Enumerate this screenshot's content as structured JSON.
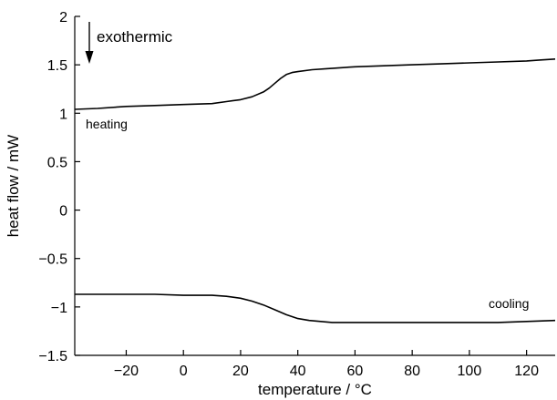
{
  "chart_data": {
    "type": "line",
    "xlabel": "temperature / °C",
    "ylabel": "heat flow / mW",
    "xlim": [
      -38,
      130
    ],
    "ylim": [
      -1.5,
      2
    ],
    "xticks": [
      -20,
      0,
      20,
      40,
      60,
      80,
      100,
      120
    ],
    "xtick_labels": [
      "−20",
      "0",
      "20",
      "40",
      "60",
      "80",
      "100",
      "120"
    ],
    "yticks": [
      -1.5,
      -1,
      -0.5,
      0,
      0.5,
      1,
      1.5,
      2
    ],
    "ytick_labels": [
      "−1.5",
      "−1",
      "−0.5",
      "0",
      "0.5",
      "1",
      "1.5",
      "2"
    ],
    "grid": false,
    "annotations": {
      "arrow_label": "exothermic",
      "heating_label": "heating",
      "cooling_label": "cooling"
    },
    "series": [
      {
        "x": [
          -38,
          -30,
          -20,
          -10,
          0,
          10,
          15,
          20,
          24,
          28,
          30,
          32,
          34,
          36,
          38,
          40,
          45,
          50,
          60,
          70,
          80,
          90,
          100,
          110,
          120,
          125,
          130
        ],
        "y": [
          1.04,
          1.05,
          1.07,
          1.08,
          1.09,
          1.1,
          1.12,
          1.14,
          1.17,
          1.22,
          1.26,
          1.31,
          1.36,
          1.4,
          1.42,
          1.43,
          1.45,
          1.46,
          1.48,
          1.49,
          1.5,
          1.51,
          1.52,
          1.53,
          1.54,
          1.55,
          1.56
        ]
      },
      {
        "x": [
          -38,
          -30,
          -20,
          -10,
          0,
          10,
          15,
          20,
          24,
          28,
          32,
          36,
          40,
          44,
          48,
          52,
          60,
          70,
          80,
          90,
          100,
          110,
          120,
          130
        ],
        "y": [
          -0.87,
          -0.87,
          -0.87,
          -0.87,
          -0.88,
          -0.88,
          -0.89,
          -0.91,
          -0.94,
          -0.98,
          -1.03,
          -1.08,
          -1.12,
          -1.14,
          -1.15,
          -1.16,
          -1.16,
          -1.16,
          -1.16,
          -1.16,
          -1.16,
          -1.16,
          -1.15,
          -1.14
        ]
      }
    ]
  }
}
